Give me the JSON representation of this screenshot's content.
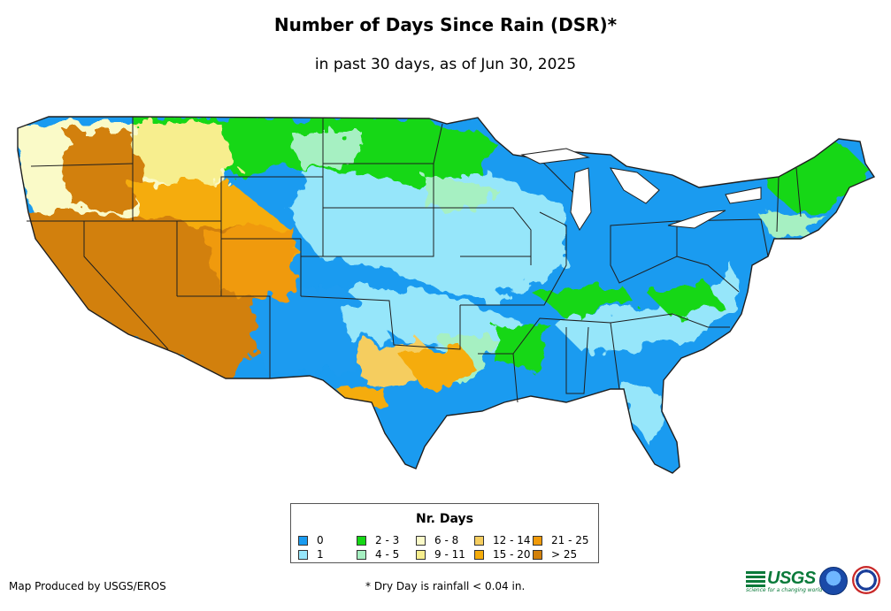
{
  "title": "Number of Days Since Rain (DSR)*",
  "subtitle": "in past 30 days, as of Jun 30, 2025",
  "legend": {
    "title": "Nr. Days",
    "items": [
      {
        "label": "0",
        "color": "#1a9bf0"
      },
      {
        "label": "1",
        "color": "#96e6fa"
      },
      {
        "label": "2 - 3",
        "color": "#15d715"
      },
      {
        "label": "4 - 5",
        "color": "#a6f0c2"
      },
      {
        "label": "6 - 8",
        "color": "#fafac8"
      },
      {
        "label": "9 - 11",
        "color": "#f7ee8e"
      },
      {
        "label": "12 - 14",
        "color": "#f5cd5e"
      },
      {
        "label": "15 - 20",
        "color": "#f5ac0a"
      },
      {
        "label": "21 - 25",
        "color": "#f09a0a"
      },
      {
        "label": "> 25",
        "color": "#d2800a"
      }
    ]
  },
  "credit": "Map Produced by USGS/EROS",
  "footnote": "* Dry Day is rainfall < 0.04 in.",
  "logos": {
    "usgs_text": "USGS",
    "usgs_tagline": "science for a changing world"
  }
}
